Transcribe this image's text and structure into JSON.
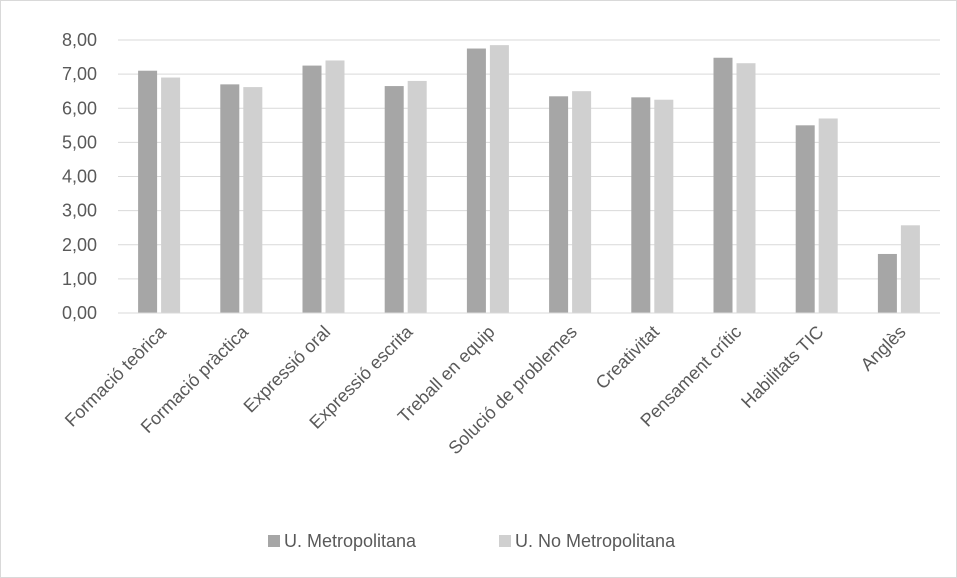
{
  "chart_data": {
    "type": "bar",
    "title": "",
    "xlabel": "",
    "ylabel": "",
    "ylim": [
      0,
      8
    ],
    "y_tick_step": 1,
    "y_tick_labels": [
      "0,00",
      "1,00",
      "2,00",
      "3,00",
      "4,00",
      "5,00",
      "6,00",
      "7,00",
      "8,00"
    ],
    "grid": true,
    "legend_position": "bottom",
    "categories": [
      "Formació teòrica",
      "Formació pràctica",
      "Expressió oral",
      "Expressió escrita",
      "Treball en equip",
      "Solució de problemes",
      "Creativitat",
      "Pensament crític",
      "Habilitats TIC",
      "Anglès"
    ],
    "series": [
      {
        "name": "U. Metropolitana",
        "color": "#a6a6a6",
        "values": [
          7.1,
          6.7,
          7.25,
          6.65,
          7.75,
          6.35,
          6.32,
          7.48,
          5.5,
          1.73
        ]
      },
      {
        "name": "U. No Metropolitana",
        "color": "#d0d0d0",
        "values": [
          6.9,
          6.62,
          7.4,
          6.8,
          7.85,
          6.5,
          6.25,
          7.32,
          5.7,
          2.57
        ]
      }
    ]
  }
}
